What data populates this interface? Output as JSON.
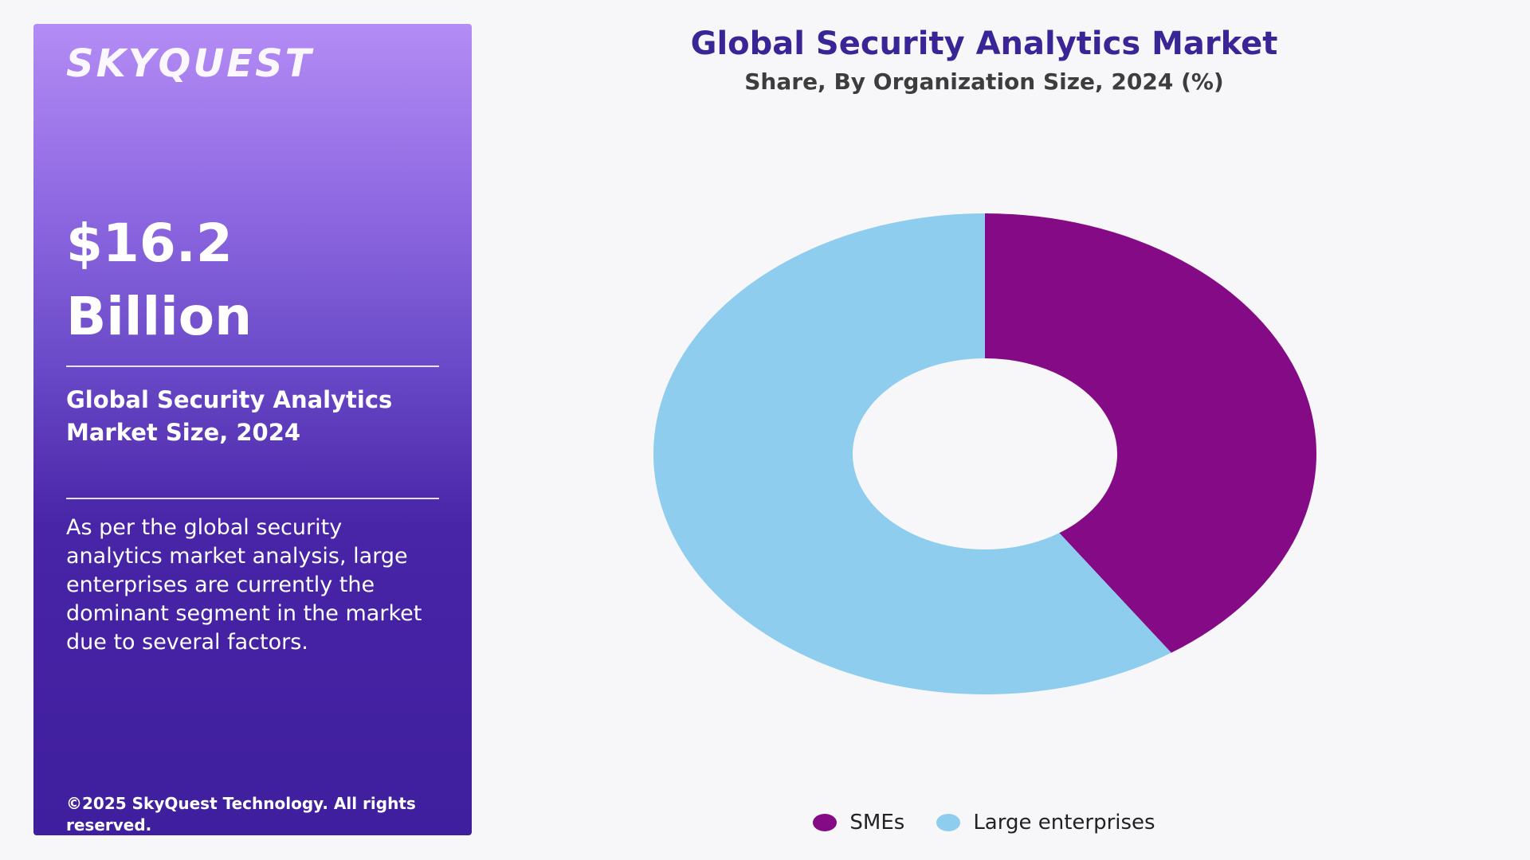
{
  "sidebar": {
    "logo": "SKYQUEST",
    "value_line1": "$16.2",
    "value_line2": "Billion",
    "metric_label": "Global Security Analytics Market Size, 2024",
    "description": "As per the global security analytics market analysis, large enterprises are currently the dominant segment in the market due to several factors.",
    "copyright": "©2025 SkyQuest Technology. All rights reserved."
  },
  "colors": {
    "sidebar_top": "#b48cf5",
    "sidebar_bottom": "#3f1f9e",
    "title": "#3a2596",
    "smes": "#850a85",
    "large_enterprises": "#8ecdee"
  },
  "chart_data": {
    "type": "pie",
    "variant": "donut",
    "title": "Global Security Analytics Market",
    "subtitle": "Share, By Organization Size, 2024 (%)",
    "legend_position": "bottom",
    "series": [
      {
        "name": "SMEs",
        "value": 40.5,
        "color": "#850a85"
      },
      {
        "name": "Large enterprises",
        "value": 59.5,
        "color": "#8ecdee"
      }
    ]
  }
}
